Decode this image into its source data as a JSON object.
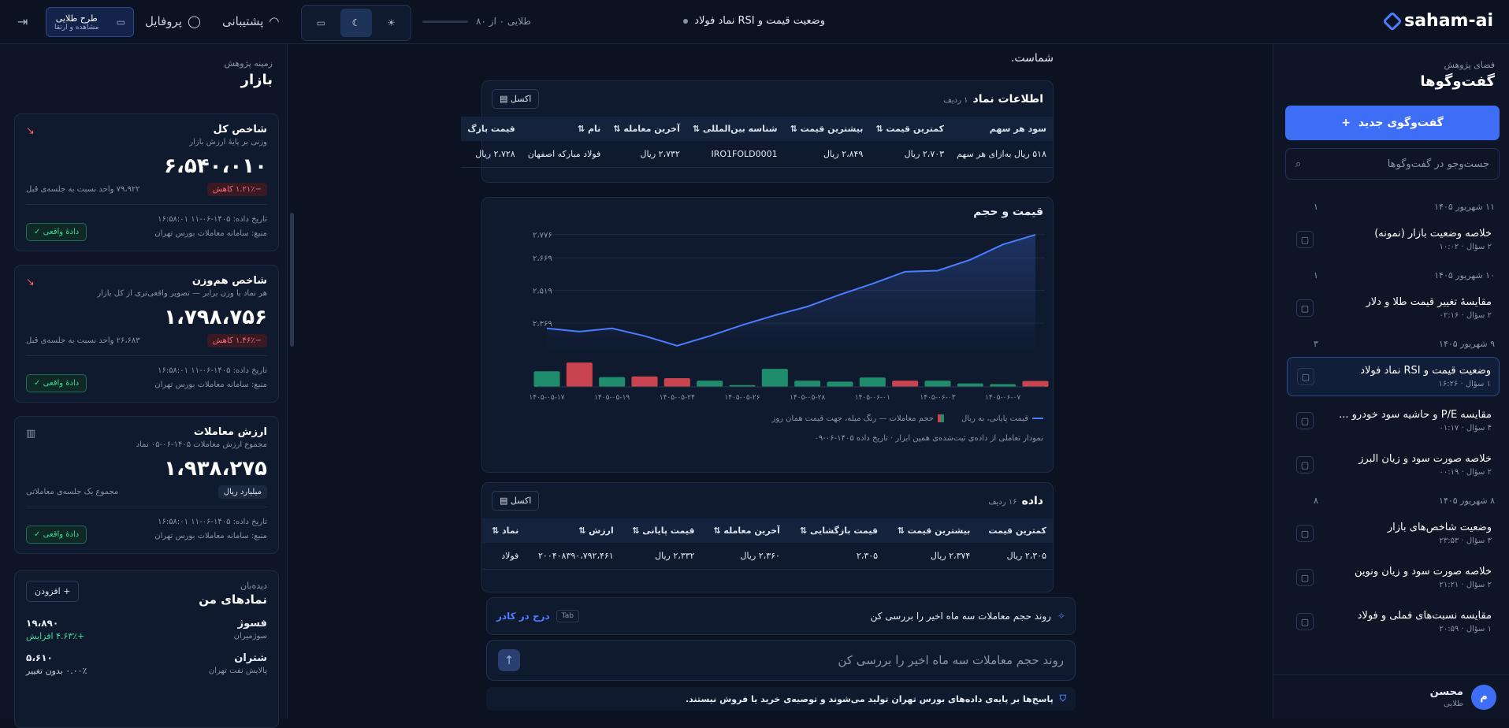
{
  "topbar": {
    "logo": "saham-ai",
    "chat_title": "وضعیت قیمت و RSI نماد فولاد",
    "quota": "طلایی ۰ از ۸۰",
    "support": "پشتیبانی",
    "profile": "پروفایل",
    "plan_line1": "طرح طلایی",
    "plan_line2": "مشاهده و ارتقا"
  },
  "right_sidebar": {
    "section_sub": "فضای پژوهش",
    "section_title": "گفت‌وگوها",
    "new_chat": "گفت‌وگوی جدید",
    "search_placeholder": "جست‌وجو در گفت‌وگوها",
    "groups": [
      {
        "date": "۱۱ شهریور ۱۴۰۵",
        "count": "۱",
        "items": [
          {
            "title": "خلاصه وضعیت بازار (نمونه)",
            "meta": "۲ سؤال · ۱۰:۰۲"
          }
        ]
      },
      {
        "date": "۱۰ شهریور ۱۴۰۵",
        "count": "۱",
        "items": [
          {
            "title": "مقایسهٔ تغییر قیمت طلا و دلار",
            "meta": "۲ سؤال · ۰۲:۱۶"
          }
        ]
      },
      {
        "date": "۹ شهریور ۱۴۰۵",
        "count": "۳",
        "items": [
          {
            "title": "وضعیت قیمت و RSI نماد فولاد",
            "meta": "۱ سؤال · ۱۶:۲۶"
          },
          {
            "title": "مقایسه P/E و حاشیه سود خودرو ...",
            "meta": "۴ سؤال · ۰۱:۱۷"
          },
          {
            "title": "خلاصه صورت سود و زیان البرز",
            "meta": "۲ سؤال · ۰۰:۱۹"
          }
        ]
      },
      {
        "date": "۸ شهریور ۱۴۰۵",
        "count": "۸",
        "items": [
          {
            "title": "وضعیت شاخص‌های بازار",
            "meta": "۳ سؤال · ۲۳:۵۳"
          },
          {
            "title": "خلاصه صورت سود و زیان ونوین",
            "meta": "۲ سؤال · ۲۱:۲۱"
          },
          {
            "title": "مقایسه نسبت‌های فملی و فولاد",
            "meta": "۱ سؤال · ۲۰:۵۹"
          }
        ]
      }
    ],
    "user_name": "محسن",
    "user_plan": "طلایی",
    "user_initial": "م"
  },
  "left_sidebar": {
    "sub": "زمینه پژوهش",
    "title": "بازار",
    "cards": [
      {
        "title": "شاخص کل",
        "desc": "وزنی بر پایهٔ ارزش بازار",
        "value": "۶،۵۴۰،۰۱۰",
        "badge": "−۱.۲۱٪ کاهش",
        "change": "۷۹،۹۲۲ واحد نسبت به جلسه‌ی قبل",
        "date": "تاریخ داده: ۱۴۰۵-۰۶-۱۱ ۱۶:۵۸:۰۱",
        "source": "منبع: سامانه معاملات بورس تهران",
        "live": "دادهٔ واقعی"
      },
      {
        "title": "شاخص هم‌وزن",
        "desc": "هر نماد با وزن برابر — تصویر واقعی‌تری از کل بازار",
        "value": "۱،۷۹۸،۷۵۶",
        "badge": "−۱.۴۶٪ کاهش",
        "change": "۲۶،۶۸۳ واحد نسبت به جلسه‌ی قبل",
        "date": "تاریخ داده: ۱۴۰۵-۰۶-۱۱ ۱۶:۵۸:۰۱",
        "source": "منبع: سامانه معاملات بورس تهران",
        "live": "دادهٔ واقعی"
      },
      {
        "title": "ارزش معاملات",
        "desc": "مجموع ارزش معاملات ۱۴۰۵-۰۶-۰۵ نماد",
        "value": "۱،۹۳۸،۲۷۵",
        "badge": "میلیارد ریال",
        "change": "مجموع یک جلسه‌ی معاملاتی",
        "date": "تاریخ داده: ۱۴۰۵-۰۶-۱۱ ۱۶:۵۸:۰۱",
        "source": "منبع: سامانه معاملات بورس تهران",
        "live": "دادهٔ واقعی"
      }
    ],
    "watchlist": {
      "sub": "دیده‌بان",
      "title": "نمادهای من",
      "add": "افزودن",
      "items": [
        {
          "symbol": "فسوژ",
          "name": "سوژمیران",
          "price": "۱۹،۸۹۰",
          "change": "+۴.۶۳٪ افزایش"
        },
        {
          "symbol": "شتران",
          "name": "پالایش نفت تهران",
          "price": "۵،۶۱۰",
          "change": "۰.۰۰٪ بدون تغییر"
        }
      ]
    }
  },
  "main": {
    "lead_text": "شماست.",
    "symbol_table": {
      "title": "اطلاعات نماد",
      "count": "۱ ردیف",
      "export": "اکسل",
      "headers": [
        "سود هر سهم",
        "کمترین قیمت",
        "بیشترین قیمت",
        "شناسه بین‌المللی",
        "آخرین معامله",
        "نام",
        "قیمت بازگ"
      ],
      "rows": [
        [
          "۵۱۸ ریال به‌ازای هر سهم",
          "۲،۷۰۳ ریال",
          "۲،۸۴۹ ریال",
          "IRO1FOLD0001",
          "۲،۷۳۲ ریال",
          "فولاد مبارکه اصفهان",
          "۲،۷۲۸ ریال"
        ]
      ]
    },
    "chart_panel": {
      "title": "قیمت و حجم",
      "legend_line": "قیمت پایانی، به ریال",
      "legend_bars": "حجم معاملات — رنگ میله، جهت قیمت همان روز",
      "note": "نمودار تعاملی از داده‌ی ثبت‌شده‌ی همین ابزار · تاریخ داده ۱۴۰۵-۰۶-۰۹"
    },
    "data_table": {
      "title": "داده",
      "count": "۱۶ ردیف",
      "export": "اکسل",
      "headers": [
        "کمترین قیمت",
        "بیشترین قیمت",
        "قیمت بازگشایی",
        "آخرین معامله",
        "قیمت پایانی",
        "ارزش",
        "نماد"
      ],
      "rows": [
        [
          "۲،۳۰۵ ریال",
          "۲،۳۷۴ ریال",
          "۲،۳۰۵",
          "۲،۳۶۰ ریال",
          "۲،۳۳۲ ریال",
          "۲۰۰۴۰۸۳۹۰،۷۹۲،۴۶۱",
          "فولاد"
        ]
      ]
    },
    "suggestion": "روند حجم معاملات سه ماه اخیر را بررسی کن",
    "tab_key": "Tab",
    "insert_label": "درج در کادر",
    "composer_text": "روند حجم معاملات سه ماه اخیر را بررسی کن",
    "disclaimer": "پاسخ‌ها بر پایه‌ی داده‌های بورس تهران تولید می‌شوند و توصیه‌ی خرید یا فروش نیستند."
  },
  "chart_data": {
    "type": "line",
    "x": [
      "۱۴۰۵-۰۵-۱۷",
      "۱۴۰۵-۰۵-۱۸",
      "۱۴۰۵-۰۵-۱۹",
      "۱۴۰۵-۰۵-۲۰",
      "۱۴۰۵-۰۵-۲۴",
      "۱۴۰۵-۰۵-۲۵",
      "۱۴۰۵-۰۵-۲۶",
      "۱۴۰۵-۰۵-۲۷",
      "۱۴۰۵-۰۵-۲۸",
      "۱۴۰۵-۰۵-۳۱",
      "۱۴۰۵-۰۶-۰۱",
      "۱۴۰۵-۰۶-۰۲",
      "۱۴۰۵-۰۶-۰۳",
      "۱۴۰۵-۰۶-۰۴",
      "۱۴۰۵-۰۶-۰۷",
      "۱۴۰۵-۰۶-۰۸"
    ],
    "x_tick_labels": [
      "۱۴۰۵-۰۵-۱۷",
      "۱۴۰۵-۰۵-۱۹",
      "۱۴۰۵-۰۵-۲۴",
      "۱۴۰۵-۰۵-۲۶",
      "۱۴۰۵-۰۵-۲۸",
      "۱۴۰۵-۰۶-۰۱",
      "۱۴۰۵-۰۶-۰۳",
      "۱۴۰۵-۰۶-۰۷"
    ],
    "y_ticks": [
      2369,
      2519,
      2669,
      2776
    ],
    "y_tick_labels": [
      "۲،۳۶۹",
      "۲،۵۱۹",
      "۲،۶۶۹",
      "۲،۷۷۶"
    ],
    "ylim": [
      2250,
      2800
    ],
    "series": [
      {
        "name": "قیمت پایانی، به ریال",
        "values": [
          2345,
          2330,
          2345,
          2310,
          2265,
          2310,
          2360,
          2405,
          2445,
          2500,
          2550,
          2605,
          2610,
          2660,
          2730,
          2775
        ]
      }
    ],
    "volume": {
      "name": "حجم معاملات — رنگ میله، جهت قیمت همان روز",
      "values": [
        0.45,
        0.7,
        0.28,
        0.3,
        0.25,
        0.18,
        0.05,
        0.52,
        0.18,
        0.15,
        0.27,
        0.18,
        0.18,
        0.1,
        0.08,
        0.17
      ],
      "direction": [
        "up",
        "down",
        "up",
        "down",
        "down",
        "up",
        "up",
        "up",
        "up",
        "up",
        "up",
        "down",
        "up",
        "up",
        "up",
        "down"
      ]
    },
    "colors": {
      "line": "#4a7dff",
      "up": "#1f8c6c",
      "down": "#c9444f"
    },
    "grid": true
  }
}
